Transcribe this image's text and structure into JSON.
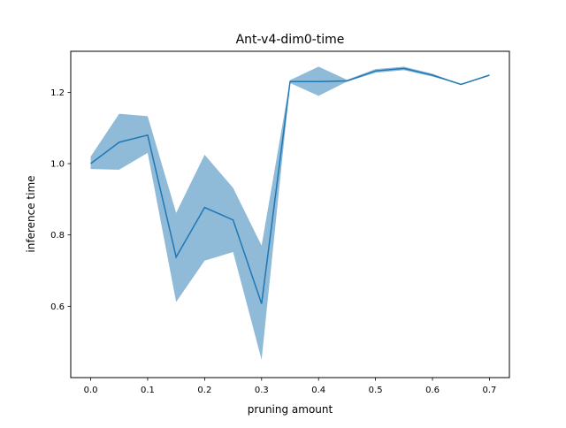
{
  "chart_data": {
    "type": "line",
    "title": "Ant-v4-dim0-time",
    "xlabel": "pruning amount",
    "ylabel": "inference time",
    "xlim": [
      -0.035,
      0.735
    ],
    "ylim": [
      0.4,
      1.315
    ],
    "xticks": [
      0.0,
      0.1,
      0.2,
      0.3,
      0.4,
      0.5,
      0.6,
      0.7
    ],
    "xtick_labels": [
      "0.0",
      "0.1",
      "0.2",
      "0.3",
      "0.4",
      "0.5",
      "0.6",
      "0.7"
    ],
    "yticks": [
      0.6,
      0.8,
      1.0,
      1.2
    ],
    "ytick_labels": [
      "0.6",
      "0.8",
      "1.0",
      "1.2"
    ],
    "grid": false,
    "line_color": "#1f77b4",
    "band_color": "#1f77b4",
    "series": [
      {
        "x": [
          0.0,
          0.05,
          0.1,
          0.15,
          0.2,
          0.25,
          0.3,
          0.35,
          0.4,
          0.45,
          0.5,
          0.55,
          0.6,
          0.65,
          0.7
        ],
        "y": [
          1.0,
          1.06,
          1.08,
          0.738,
          0.877,
          0.842,
          0.607,
          1.23,
          1.23,
          1.232,
          1.26,
          1.267,
          1.248,
          1.222,
          1.248
        ],
        "y_low": [
          0.985,
          0.983,
          1.03,
          0.612,
          0.728,
          0.752,
          0.45,
          1.226,
          1.19,
          1.23,
          1.255,
          1.262,
          1.244,
          1.222,
          1.248
        ],
        "y_high": [
          1.02,
          1.14,
          1.133,
          0.862,
          1.025,
          0.932,
          0.77,
          1.234,
          1.272,
          1.235,
          1.265,
          1.272,
          1.252,
          1.222,
          1.248
        ]
      }
    ]
  }
}
